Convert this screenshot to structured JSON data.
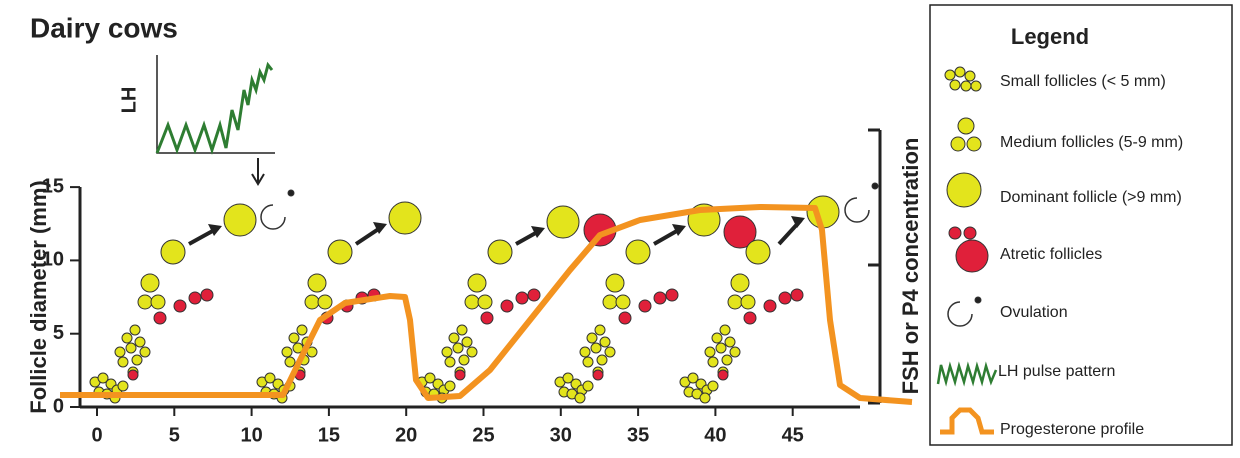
{
  "title": "Dairy cows",
  "inset_label": "LH",
  "y_axis_label": "Follicle diameter (mm)",
  "right_axis_label": "FSH or P4 concentration",
  "xticks": [
    0,
    5,
    10,
    15,
    20,
    25,
    30,
    35,
    40,
    45
  ],
  "yticks": [
    0,
    5,
    10,
    15
  ],
  "legend": {
    "title": "Legend",
    "items": [
      "Small follicles (< 5 mm)",
      "Medium follicles (5-9 mm)",
      "Dominant follicle (>9 mm)",
      "Atretic follicles",
      "Ovulation",
      "LH pulse pattern",
      "Progesterone profile"
    ]
  }
}
